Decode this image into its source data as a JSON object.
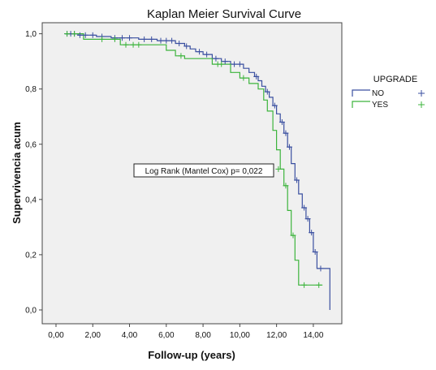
{
  "chart_data": {
    "type": "line",
    "title": "Kaplan Meier Survival Curve",
    "xlabel": "Follow-up (years)",
    "ylabel": "Supervivencia acum",
    "xlim": [
      0,
      15
    ],
    "ylim": [
      0,
      1
    ],
    "x_ticks": [
      "0,00",
      "2,00",
      "4,00",
      "6,00",
      "8,00",
      "10,00",
      "12,00",
      "14,00"
    ],
    "x_tick_values": [
      0,
      2,
      4,
      6,
      8,
      10,
      12,
      14
    ],
    "y_ticks": [
      "0,0",
      "0,2",
      "0,4",
      "0,6",
      "0,8",
      "1,0"
    ],
    "y_tick_values": [
      0,
      0.2,
      0.4,
      0.6,
      0.8,
      1.0
    ],
    "grid": false,
    "legend": {
      "title": "UPGRADE",
      "position": "right",
      "entries": [
        {
          "label": "NO",
          "color": "#3a4fa0"
        },
        {
          "label": "YES",
          "color": "#3cb43c"
        }
      ]
    },
    "annotation": "Log Rank (Mantel Cox) p= 0,022",
    "series": [
      {
        "name": "NO",
        "color": "#3a4fa0",
        "steps": [
          [
            0.5,
            1.0
          ],
          [
            1.2,
            0.995
          ],
          [
            2.2,
            0.99
          ],
          [
            3.0,
            0.985
          ],
          [
            4.5,
            0.98
          ],
          [
            5.5,
            0.975
          ],
          [
            6.5,
            0.965
          ],
          [
            7.0,
            0.955
          ],
          [
            7.3,
            0.945
          ],
          [
            7.6,
            0.935
          ],
          [
            8.0,
            0.925
          ],
          [
            8.5,
            0.91
          ],
          [
            9.0,
            0.9
          ],
          [
            9.5,
            0.89
          ],
          [
            10.2,
            0.875
          ],
          [
            10.5,
            0.86
          ],
          [
            10.8,
            0.845
          ],
          [
            11.0,
            0.83
          ],
          [
            11.2,
            0.81
          ],
          [
            11.4,
            0.79
          ],
          [
            11.6,
            0.77
          ],
          [
            11.8,
            0.74
          ],
          [
            12.0,
            0.71
          ],
          [
            12.2,
            0.68
          ],
          [
            12.4,
            0.64
          ],
          [
            12.6,
            0.59
          ],
          [
            12.8,
            0.53
          ],
          [
            13.0,
            0.47
          ],
          [
            13.2,
            0.42
          ],
          [
            13.4,
            0.37
          ],
          [
            13.6,
            0.33
          ],
          [
            13.8,
            0.28
          ],
          [
            14.0,
            0.21
          ],
          [
            14.2,
            0.15
          ],
          [
            14.9,
            0.0
          ]
        ],
        "end_x": 14.9,
        "censored": [
          [
            0.6,
            1.0
          ],
          [
            0.8,
            1.0
          ],
          [
            1.0,
            1.0
          ],
          [
            1.3,
            0.995
          ],
          [
            1.6,
            0.995
          ],
          [
            2.0,
            0.995
          ],
          [
            2.5,
            0.99
          ],
          [
            3.2,
            0.985
          ],
          [
            3.6,
            0.985
          ],
          [
            4.0,
            0.985
          ],
          [
            4.8,
            0.98
          ],
          [
            5.2,
            0.98
          ],
          [
            5.7,
            0.975
          ],
          [
            6.0,
            0.975
          ],
          [
            6.3,
            0.975
          ],
          [
            6.7,
            0.965
          ],
          [
            7.1,
            0.955
          ],
          [
            7.8,
            0.935
          ],
          [
            8.2,
            0.925
          ],
          [
            8.7,
            0.91
          ],
          [
            9.2,
            0.9
          ],
          [
            9.7,
            0.89
          ],
          [
            10.0,
            0.89
          ],
          [
            10.9,
            0.845
          ],
          [
            11.5,
            0.79
          ],
          [
            11.9,
            0.74
          ],
          [
            12.3,
            0.68
          ],
          [
            12.5,
            0.64
          ],
          [
            12.7,
            0.59
          ],
          [
            13.1,
            0.47
          ],
          [
            13.5,
            0.37
          ],
          [
            13.7,
            0.33
          ],
          [
            13.9,
            0.28
          ],
          [
            14.1,
            0.21
          ],
          [
            14.4,
            0.15
          ]
        ]
      },
      {
        "name": "YES",
        "color": "#3cb43c",
        "steps": [
          [
            0.5,
            1.0
          ],
          [
            1.5,
            0.98
          ],
          [
            3.5,
            0.96
          ],
          [
            6.0,
            0.94
          ],
          [
            6.5,
            0.92
          ],
          [
            7.0,
            0.91
          ],
          [
            8.5,
            0.89
          ],
          [
            9.5,
            0.86
          ],
          [
            10.0,
            0.84
          ],
          [
            10.5,
            0.82
          ],
          [
            11.0,
            0.8
          ],
          [
            11.3,
            0.76
          ],
          [
            11.5,
            0.72
          ],
          [
            11.8,
            0.65
          ],
          [
            12.0,
            0.58
          ],
          [
            12.2,
            0.51
          ],
          [
            12.4,
            0.45
          ],
          [
            12.6,
            0.36
          ],
          [
            12.8,
            0.27
          ],
          [
            13.0,
            0.18
          ],
          [
            13.2,
            0.09
          ],
          [
            14.5,
            0.09
          ]
        ],
        "end_x": 14.5,
        "censored": [
          [
            0.6,
            1.0
          ],
          [
            1.0,
            1.0
          ],
          [
            2.5,
            0.98
          ],
          [
            3.2,
            0.98
          ],
          [
            3.8,
            0.96
          ],
          [
            4.2,
            0.96
          ],
          [
            4.5,
            0.96
          ],
          [
            6.8,
            0.92
          ],
          [
            8.8,
            0.89
          ],
          [
            9.0,
            0.89
          ],
          [
            10.2,
            0.84
          ],
          [
            12.1,
            0.51
          ],
          [
            12.5,
            0.45
          ],
          [
            12.9,
            0.27
          ],
          [
            13.5,
            0.09
          ],
          [
            14.3,
            0.09
          ]
        ]
      }
    ]
  }
}
